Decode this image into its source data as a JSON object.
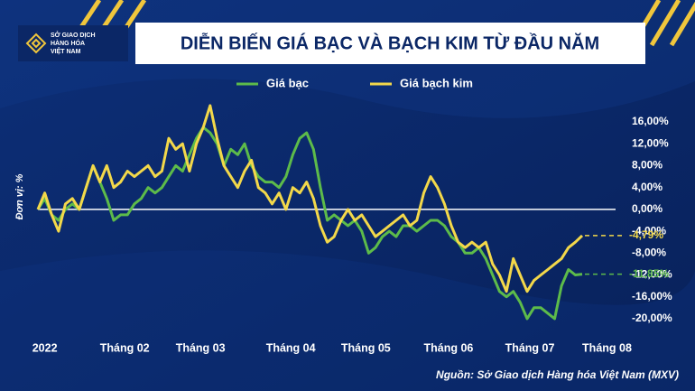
{
  "logo": {
    "text": [
      "SỞ GIAO DỊCH",
      "HÀNG HÓA",
      "VIỆT NAM"
    ]
  },
  "chart_data": {
    "type": "line",
    "title": "DIỄN BIẾN GIÁ BẠC VÀ BẠCH KIM TỪ ĐẦU NĂM",
    "y_label": "Đơn vị: %",
    "source": "Nguồn: Sở Giao dịch Hàng hóa Việt Nam (MXV)",
    "xlim": [
      0,
      84.5
    ],
    "xticks": [
      {
        "value": 1,
        "label": "2022"
      },
      {
        "value": 12.6,
        "label": "Tháng 02"
      },
      {
        "value": 23.6,
        "label": "Tháng 03"
      },
      {
        "value": 36.7,
        "label": "Tháng 04"
      },
      {
        "value": 47.6,
        "label": "Tháng 05"
      },
      {
        "value": 59.6,
        "label": "Tháng 06"
      },
      {
        "value": 71.4,
        "label": "Tháng 07"
      },
      {
        "value": 82.6,
        "label": "Tháng 08"
      }
    ],
    "ylim": [
      -21,
      20
    ],
    "yticks": [
      {
        "value": 16,
        "label": "16,00%"
      },
      {
        "value": 12,
        "label": "12,00%"
      },
      {
        "value": 8,
        "label": "8,00%"
      },
      {
        "value": 4,
        "label": "4,00%"
      },
      {
        "value": 0,
        "label": "0,00%"
      },
      {
        "value": -4,
        "label": "-4,00%"
      },
      {
        "value": -8,
        "label": "-8,00%"
      },
      {
        "value": -12,
        "label": "-12,00%"
      },
      {
        "value": -16,
        "label": "-16,00%"
      },
      {
        "value": -20,
        "label": "-20,00%"
      }
    ],
    "zero_line": true,
    "series": [
      {
        "name": "Giá bạc",
        "color": "#5dbb4a",
        "end_label": "-11,85%",
        "values": [
          0,
          2,
          -1,
          -2,
          0,
          1,
          0,
          4,
          8,
          5,
          2,
          -2,
          -1,
          -1,
          1,
          2,
          4,
          3,
          4,
          6,
          8,
          7,
          10,
          13,
          15,
          14,
          12,
          8,
          11,
          10,
          12,
          8,
          6,
          5,
          5,
          4,
          6,
          10,
          13,
          14,
          11,
          4,
          -2,
          -1,
          -2,
          -3,
          -2,
          -4,
          -8,
          -7,
          -5,
          -4,
          -5,
          -3,
          -3,
          -4,
          -3,
          -2,
          -2,
          -3,
          -5,
          -6,
          -8,
          -8,
          -7,
          -9,
          -12,
          -15,
          -16,
          -15,
          -17,
          -20,
          -18,
          -18,
          -19,
          -20,
          -14,
          -11,
          -12,
          -11.85
        ]
      },
      {
        "name": "Giá bạch kim",
        "color": "#f3d84a",
        "end_label": "-4,79%",
        "values": [
          0,
          3,
          -1,
          -4,
          1,
          2,
          0,
          4,
          8,
          5,
          8,
          4,
          5,
          7,
          6,
          7,
          8,
          6,
          7,
          13,
          11,
          12,
          7,
          12,
          15,
          19,
          13,
          8,
          6,
          4,
          7,
          9,
          4,
          3,
          1,
          3,
          0,
          4,
          3,
          5,
          2,
          -3,
          -6,
          -5,
          -2,
          0,
          -2,
          -1,
          -3,
          -5,
          -4,
          -3,
          -2,
          -1,
          -3,
          -2,
          3,
          6,
          4,
          1,
          -3,
          -6,
          -7,
          -6,
          -7,
          -6,
          -10,
          -12,
          -15,
          -9,
          -12,
          -15,
          -13,
          -12,
          -11,
          -10,
          -9,
          -7,
          -6,
          -4.79
        ]
      }
    ]
  }
}
